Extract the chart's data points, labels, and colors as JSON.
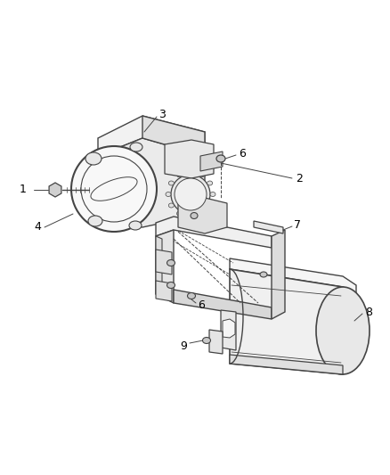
{
  "background_color": "#ffffff",
  "line_color": "#444444",
  "label_color": "#000000",
  "fig_width": 4.38,
  "fig_height": 5.33,
  "dpi": 100,
  "label_fontsize": 9
}
